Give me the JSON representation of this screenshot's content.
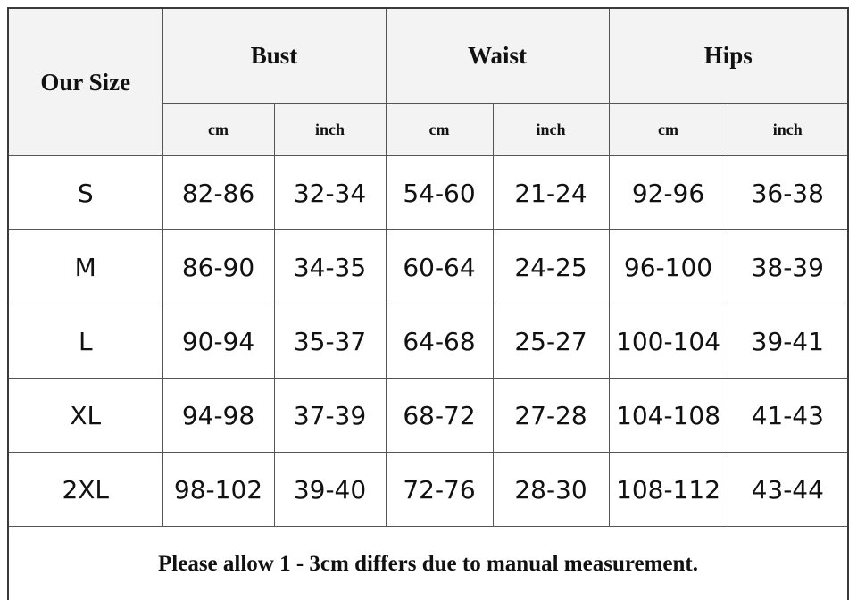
{
  "header": {
    "our_size": "Our Size",
    "groups": [
      "Bust",
      "Waist",
      "Hips"
    ],
    "units": [
      "cm",
      "inch",
      "cm",
      "inch",
      "cm",
      "inch"
    ]
  },
  "rows": [
    {
      "size": "S",
      "values": [
        "82-86",
        "32-34",
        "54-60",
        "21-24",
        "92-96",
        "36-38"
      ]
    },
    {
      "size": "M",
      "values": [
        "86-90",
        "34-35",
        "60-64",
        "24-25",
        "96-100",
        "38-39"
      ]
    },
    {
      "size": "L",
      "values": [
        "90-94",
        "35-37",
        "64-68",
        "25-27",
        "100-104",
        "39-41"
      ]
    },
    {
      "size": "XL",
      "values": [
        "94-98",
        "37-39",
        "68-72",
        "27-28",
        "104-108",
        "41-43"
      ]
    },
    {
      "size": "2XL",
      "values": [
        "98-102",
        "39-40",
        "72-76",
        "28-30",
        "108-112",
        "43-44"
      ]
    }
  ],
  "footer_note": "Please allow 1 - 3cm differs due to manual measurement."
}
